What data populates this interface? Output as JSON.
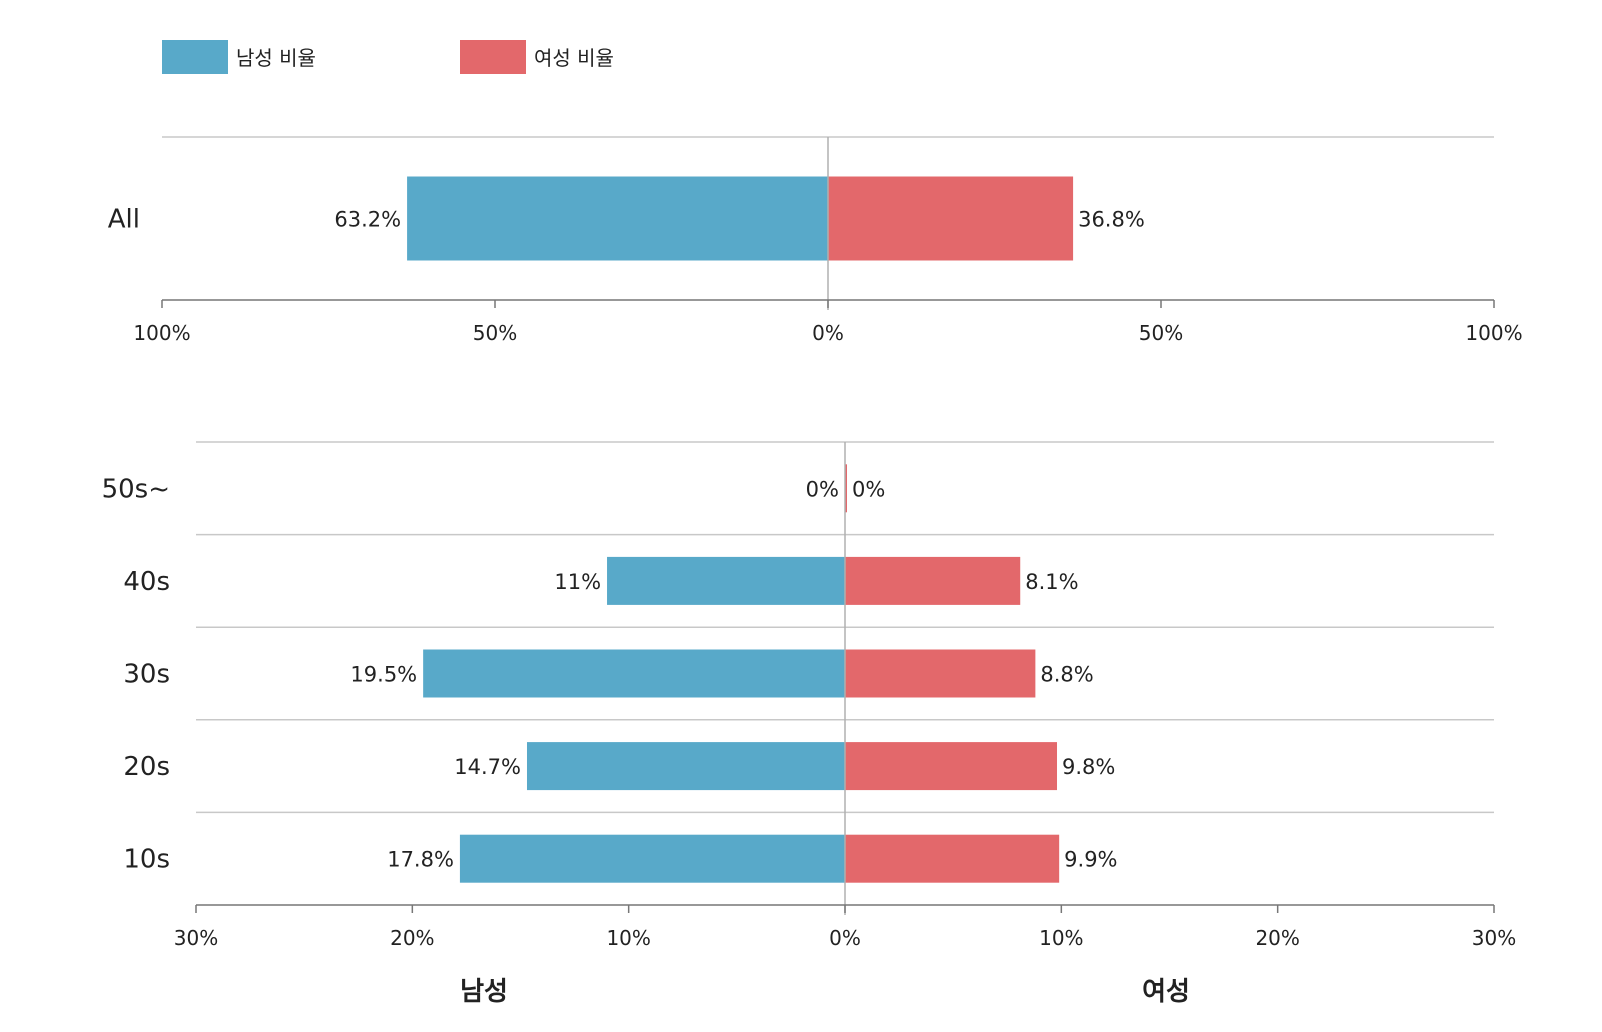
{
  "legend": {
    "male_label": "남성 비율",
    "female_label": "여성 비율"
  },
  "colors": {
    "male": "#58a9c9",
    "female": "#e3686b",
    "grid": "#c8c8c8",
    "axis": "#777777",
    "center": "#b0b0b0"
  },
  "chart_data": [
    {
      "type": "bar",
      "orientation": "horizontal-diverging",
      "categories": [
        "All"
      ],
      "series": [
        {
          "name": "남성 비율",
          "values": [
            63.2
          ],
          "labels": [
            "63.2%"
          ]
        },
        {
          "name": "여성 비율",
          "values": [
            36.8
          ],
          "labels": [
            "36.8%"
          ]
        }
      ],
      "xlim": [
        -100,
        100
      ],
      "ticks": [
        -100,
        -50,
        0,
        50,
        100
      ],
      "tick_labels": [
        "100%",
        "50%",
        "0%",
        "50%",
        "100%"
      ]
    },
    {
      "type": "bar",
      "orientation": "horizontal-diverging",
      "categories": [
        "50s~",
        "40s",
        "30s",
        "20s",
        "10s"
      ],
      "series": [
        {
          "name": "남성 비율",
          "values": [
            0,
            11,
            19.5,
            14.7,
            17.8
          ],
          "labels": [
            "0%",
            "11%",
            "19.5%",
            "14.7%",
            "17.8%"
          ]
        },
        {
          "name": "여성 비율",
          "values": [
            0,
            8.1,
            8.8,
            9.8,
            9.9
          ],
          "labels": [
            "0%",
            "8.1%",
            "8.8%",
            "9.8%",
            "9.9%"
          ]
        }
      ],
      "xlim": [
        -30,
        30
      ],
      "ticks": [
        -30,
        -20,
        -10,
        0,
        10,
        20,
        30
      ],
      "tick_labels": [
        "30%",
        "20%",
        "10%",
        "0%",
        "10%",
        "20%",
        "30%"
      ],
      "xlabel_left": "남성",
      "xlabel_right": "여성"
    }
  ]
}
